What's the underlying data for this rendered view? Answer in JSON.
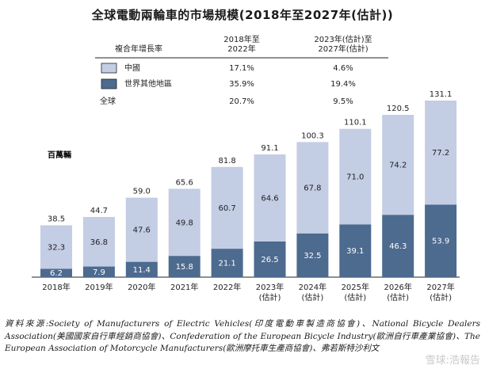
{
  "title": "全球電動兩輪車的市場規模(2018年至2027年(估計))",
  "unit_label": "百萬輛",
  "cagr_table": {
    "header": [
      "複合年增長率",
      "2018年至\n2022年",
      "2023年(估計)至\n2027年(估計)"
    ],
    "rows": [
      {
        "label": "中國",
        "values": [
          "17.1%",
          "4.6%"
        ],
        "swatch": "china"
      },
      {
        "label": "世界其他地區",
        "values": [
          "35.9%",
          "19.4%"
        ],
        "swatch": "rest"
      },
      {
        "label": "全球",
        "values": [
          "20.7%",
          "9.5%"
        ],
        "swatch": ""
      }
    ]
  },
  "colors": {
    "china": "#c3cde4",
    "rest": "#4d6a8f"
  },
  "chart_data": {
    "type": "bar",
    "stacked": true,
    "title": "全球電動兩輪車的市場規模(2018年至2027年(估計))",
    "ylabel": "百萬輛",
    "categories": [
      "2018年",
      "2019年",
      "2020年",
      "2021年",
      "2022年",
      "2023年\n(估計)",
      "2024年\n(估計)",
      "2025年\n(估計)",
      "2026年\n(估計)",
      "2027年\n(估計)"
    ],
    "series": [
      {
        "name": "世界其他地區",
        "values": [
          6.2,
          7.9,
          11.4,
          15.8,
          21.1,
          26.5,
          32.5,
          39.1,
          46.3,
          53.9
        ]
      },
      {
        "name": "中國",
        "values": [
          32.3,
          36.8,
          47.6,
          49.8,
          60.7,
          64.6,
          67.8,
          71.0,
          74.2,
          77.2
        ]
      }
    ],
    "totals": [
      38.5,
      44.7,
      59.0,
      65.6,
      81.8,
      91.1,
      100.3,
      110.1,
      120.5,
      131.1
    ],
    "ylim": [
      0,
      131.1
    ]
  },
  "source": "資料來源:Society of Manufacturers of Electric Vehicles(印度電動車製造商協會)、National Bicycle Dealers Association(美國國家自行車經銷商協會)、Confederation of the European Bicycle Industry(歐洲自行車產業協會)、The European Association of Motorcycle Manufacturers(歐洲摩托車生產商協會)、弗若斯特沙利文",
  "watermark": "雪球:浩報告"
}
